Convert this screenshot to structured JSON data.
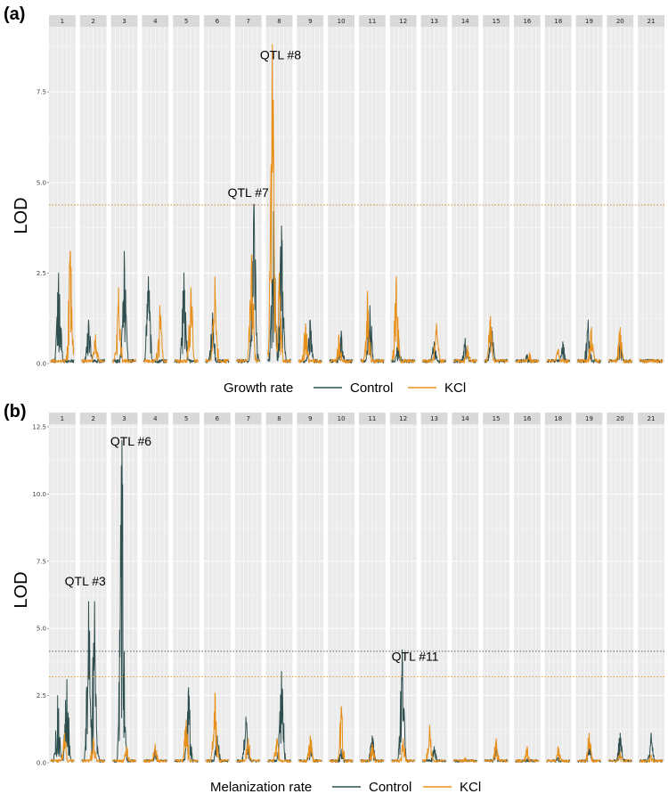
{
  "colors": {
    "control": "#2f4f4f",
    "kcl": "#e8901c",
    "panel_bg": "#ebebeb",
    "strip_bg": "#d9d9d9",
    "grid": "#ffffff"
  },
  "chart_data": [
    {
      "panel": "(a)",
      "type": "line",
      "facets": [
        "1",
        "2",
        "3",
        "4",
        "5",
        "6",
        "7",
        "8",
        "9",
        "10",
        "11",
        "12",
        "13",
        "14",
        "15",
        "16",
        "18",
        "19",
        "20",
        "21"
      ],
      "ylabel": "LOD",
      "ylim": [
        0,
        9.3
      ],
      "yticks": [
        0.0,
        2.5,
        5.0,
        7.5
      ],
      "ytick_labels": [
        "0.0",
        "2.5",
        "5.0",
        "7.5"
      ],
      "thresholds": {
        "control": 4.38,
        "kcl": 4.38
      },
      "legend": {
        "title": "Growth rate",
        "entries": [
          "Control",
          "KCl"
        ]
      },
      "annotations": [
        {
          "text": "QTL #7",
          "facet": "7",
          "pos": 0.5,
          "lod": 4.6
        },
        {
          "text": "QTL #8",
          "facet": "8",
          "pos": 0.55,
          "lod": 8.4
        }
      ],
      "series": [
        {
          "name": "Control",
          "color_key": "control",
          "peaks": {
            "1": [
              [
                0.35,
                2.5
              ]
            ],
            "2": [
              [
                0.3,
                1.2
              ]
            ],
            "3": [
              [
                0.5,
                3.1
              ]
            ],
            "4": [
              [
                0.2,
                2.4
              ]
            ],
            "5": [
              [
                0.4,
                2.5
              ]
            ],
            "6": [
              [
                0.3,
                1.4
              ]
            ],
            "7": [
              [
                0.75,
                4.4
              ]
            ],
            "8": [
              [
                0.25,
                4.2
              ],
              [
                0.6,
                3.8
              ]
            ],
            "9": [
              [
                0.5,
                1.2
              ]
            ],
            "10": [
              [
                0.5,
                0.9
              ]
            ],
            "11": [
              [
                0.4,
                1.6
              ]
            ],
            "12": [
              [
                0.3,
                0.7
              ]
            ],
            "13": [
              [
                0.5,
                0.6
              ]
            ],
            "14": [
              [
                0.5,
                0.7
              ]
            ],
            "15": [
              [
                0.3,
                1.0
              ]
            ],
            "16": [
              [
                0.5,
                0.25
              ]
            ],
            "18": [
              [
                0.7,
                0.6
              ]
            ],
            "19": [
              [
                0.45,
                1.2
              ]
            ],
            "20": [
              [
                0.5,
                0.7
              ]
            ],
            "21": [
              [
                0.5,
                0.1
              ]
            ]
          }
        },
        {
          "name": "KCl",
          "color_key": "kcl",
          "peaks": {
            "1": [
              [
                0.85,
                3.1
              ]
            ],
            "2": [
              [
                0.6,
                0.8
              ]
            ],
            "3": [
              [
                0.25,
                2.1
              ]
            ],
            "4": [
              [
                0.7,
                1.6
              ]
            ],
            "5": [
              [
                0.7,
                2.1
              ]
            ],
            "6": [
              [
                0.4,
                2.4
              ]
            ],
            "7": [
              [
                0.65,
                3.0
              ]
            ],
            "8": [
              [
                0.2,
                8.8
              ],
              [
                0.5,
                2.5
              ]
            ],
            "9": [
              [
                0.3,
                1.1
              ]
            ],
            "10": [
              [
                0.4,
                0.8
              ]
            ],
            "11": [
              [
                0.3,
                2.0
              ]
            ],
            "12": [
              [
                0.2,
                2.4
              ]
            ],
            "13": [
              [
                0.6,
                1.1
              ]
            ],
            "14": [
              [
                0.6,
                0.5
              ]
            ],
            "15": [
              [
                0.25,
                1.3
              ]
            ],
            "16": [
              [
                0.6,
                0.3
              ]
            ],
            "18": [
              [
                0.5,
                0.4
              ]
            ],
            "19": [
              [
                0.6,
                1.0
              ]
            ],
            "20": [
              [
                0.5,
                1.0
              ]
            ],
            "21": [
              [
                0.5,
                0.1
              ]
            ]
          }
        }
      ]
    },
    {
      "panel": "(b)",
      "type": "line",
      "facets": [
        "1",
        "2",
        "3",
        "4",
        "5",
        "6",
        "7",
        "8",
        "9",
        "10",
        "11",
        "12",
        "13",
        "14",
        "15",
        "16",
        "18",
        "19",
        "20",
        "21"
      ],
      "ylabel": "LOD",
      "ylim": [
        0,
        12.6
      ],
      "yticks": [
        0.0,
        2.5,
        5.0,
        7.5,
        10.0,
        12.5
      ],
      "ytick_labels": [
        "0.0",
        "2.5",
        "5.0",
        "7.5",
        "10.0",
        "12.5"
      ],
      "thresholds": {
        "control": 4.15,
        "kcl": 3.2
      },
      "legend": {
        "title": "Melanization rate",
        "entries": [
          "Control",
          "KCl"
        ]
      },
      "annotations": [
        {
          "text": "QTL #3",
          "facet": "2",
          "pos": 0.2,
          "lod": 6.6
        },
        {
          "text": "QTL #6",
          "facet": "3",
          "pos": 0.75,
          "lod": 11.8
        },
        {
          "text": "QTL #11",
          "facet": "12",
          "pos": 0.95,
          "lod": 3.8
        }
      ],
      "series": [
        {
          "name": "Control",
          "color_key": "control",
          "peaks": {
            "1": [
              [
                0.3,
                2.5
              ],
              [
                0.7,
                3.1
              ]
            ],
            "2": [
              [
                0.3,
                6.0
              ],
              [
                0.55,
                6.0
              ]
            ],
            "3": [
              [
                0.4,
                12.0
              ]
            ],
            "4": [
              [
                0.5,
                0.5
              ]
            ],
            "5": [
              [
                0.6,
                2.8
              ]
            ],
            "6": [
              [
                0.5,
                1.0
              ]
            ],
            "7": [
              [
                0.4,
                1.7
              ]
            ],
            "8": [
              [
                0.6,
                3.4
              ]
            ],
            "9": [
              [
                0.5,
                0.7
              ]
            ],
            "10": [
              [
                0.5,
                0.5
              ]
            ],
            "11": [
              [
                0.5,
                1.0
              ]
            ],
            "12": [
              [
                0.45,
                4.2
              ]
            ],
            "13": [
              [
                0.5,
                0.6
              ]
            ],
            "14": [
              [
                0.5,
                0.15
              ]
            ],
            "15": [
              [
                0.5,
                0.6
              ]
            ],
            "16": [
              [
                0.5,
                0.15
              ]
            ],
            "18": [
              [
                0.5,
                0.2
              ]
            ],
            "19": [
              [
                0.5,
                0.8
              ]
            ],
            "20": [
              [
                0.5,
                1.1
              ]
            ],
            "21": [
              [
                0.5,
                1.1
              ]
            ]
          }
        },
        {
          "name": "KCl",
          "color_key": "kcl",
          "peaks": {
            "1": [
              [
                0.6,
                1.1
              ]
            ],
            "2": [
              [
                0.5,
                0.9
              ]
            ],
            "3": [
              [
                0.6,
                0.6
              ]
            ],
            "4": [
              [
                0.5,
                0.7
              ]
            ],
            "5": [
              [
                0.5,
                1.6
              ]
            ],
            "6": [
              [
                0.4,
                2.6
              ]
            ],
            "7": [
              [
                0.5,
                0.9
              ]
            ],
            "8": [
              [
                0.4,
                0.9
              ]
            ],
            "9": [
              [
                0.5,
                1.0
              ]
            ],
            "10": [
              [
                0.5,
                2.1
              ]
            ],
            "11": [
              [
                0.5,
                0.7
              ]
            ],
            "12": [
              [
                0.5,
                0.9
              ]
            ],
            "13": [
              [
                0.3,
                1.4
              ]
            ],
            "14": [
              [
                0.5,
                0.2
              ]
            ],
            "15": [
              [
                0.5,
                0.9
              ]
            ],
            "16": [
              [
                0.5,
                0.6
              ]
            ],
            "18": [
              [
                0.5,
                0.6
              ]
            ],
            "19": [
              [
                0.5,
                1.1
              ]
            ],
            "20": [
              [
                0.5,
                0.4
              ]
            ],
            "21": [
              [
                0.5,
                0.3
              ]
            ]
          }
        }
      ]
    }
  ]
}
